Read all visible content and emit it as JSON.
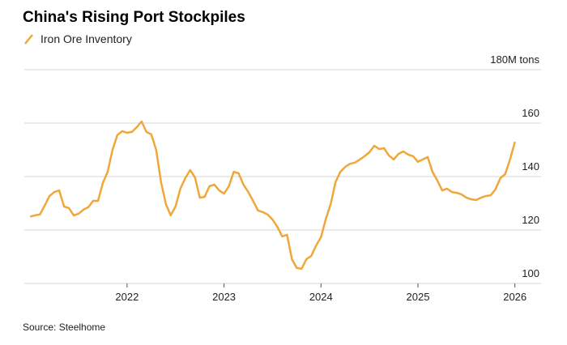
{
  "chart_data": {
    "type": "line",
    "title": "China's Rising Port Stockpiles",
    "source": "Source: Steelhome",
    "x": [
      2021.0,
      2021.05,
      2021.1,
      2021.15,
      2021.2,
      2021.25,
      2021.3,
      2021.35,
      2021.4,
      2021.45,
      2021.5,
      2021.55,
      2021.6,
      2021.65,
      2021.7,
      2021.75,
      2021.8,
      2021.85,
      2021.9,
      2021.95,
      2022.0,
      2022.05,
      2022.1,
      2022.15,
      2022.2,
      2022.25,
      2022.3,
      2022.35,
      2022.4,
      2022.45,
      2022.5,
      2022.55,
      2022.6,
      2022.65,
      2022.7,
      2022.75,
      2022.8,
      2022.85,
      2022.9,
      2022.95,
      2023.0,
      2023.05,
      2023.1,
      2023.15,
      2023.2,
      2023.25,
      2023.3,
      2023.35,
      2023.4,
      2023.45,
      2023.5,
      2023.55,
      2023.6,
      2023.65,
      2023.7,
      2023.75,
      2023.8,
      2023.85,
      2023.9,
      2023.95,
      2024.0,
      2024.05,
      2024.1,
      2024.15,
      2024.2,
      2024.25,
      2024.3,
      2024.35,
      2024.4,
      2024.45,
      2024.5,
      2024.55,
      2024.6,
      2024.65,
      2024.7,
      2024.75,
      2024.8,
      2024.85,
      2024.9,
      2024.95,
      2025.0,
      2025.05,
      2025.1,
      2025.15,
      2025.2,
      2025.25,
      2025.3,
      2025.35,
      2025.4,
      2025.45,
      2025.5,
      2025.55,
      2025.6,
      2025.65,
      2025.7,
      2025.75,
      2025.8,
      2025.85,
      2025.9,
      2025.95,
      2026.0
    ],
    "series": [
      {
        "name": "Iron Ore Inventory",
        "color": "#f0a73a",
        "values": [
          125.0,
          125.5,
          125.8,
          129.1,
          132.7,
          134.2,
          134.8,
          128.8,
          128.2,
          125.5,
          126.1,
          127.6,
          128.5,
          130.9,
          130.9,
          137.6,
          141.8,
          150,
          155.5,
          157,
          156.4,
          156.7,
          158.5,
          160.6,
          156.7,
          155.8,
          150,
          137.9,
          129.7,
          125.5,
          128.8,
          135.5,
          139.4,
          142.4,
          139.7,
          132.1,
          132.4,
          136.4,
          137,
          134.8,
          133.6,
          136.4,
          141.8,
          141.2,
          137,
          134.2,
          130.9,
          127.3,
          126.7,
          125.8,
          123.9,
          121.2,
          117.6,
          118.2,
          109.1,
          105.8,
          105.5,
          109.1,
          110.3,
          114.2,
          117.3,
          124.2,
          129.7,
          137.9,
          141.8,
          143.6,
          144.8,
          145.2,
          146.4,
          147.6,
          149.1,
          151.5,
          150.3,
          150.6,
          147.9,
          146.4,
          148.5,
          149.4,
          148.2,
          147.6,
          145.5,
          146.4,
          147.3,
          141.8,
          138.5,
          134.8,
          135.5,
          134.2,
          133.9,
          133.3,
          132.1,
          131.5,
          131.2,
          132.1,
          132.7,
          133,
          135.2,
          139.4,
          140.9,
          146.4,
          153
        ]
      }
    ],
    "xlim": [
      2020.94,
      2026.27
    ],
    "xticks": [
      2022,
      2023,
      2024,
      2025,
      2026
    ],
    "ylim": [
      100,
      180
    ],
    "yticks": [
      100,
      120,
      140,
      160,
      {
        "value": 180,
        "label": "180M tons"
      }
    ],
    "grid": true
  }
}
